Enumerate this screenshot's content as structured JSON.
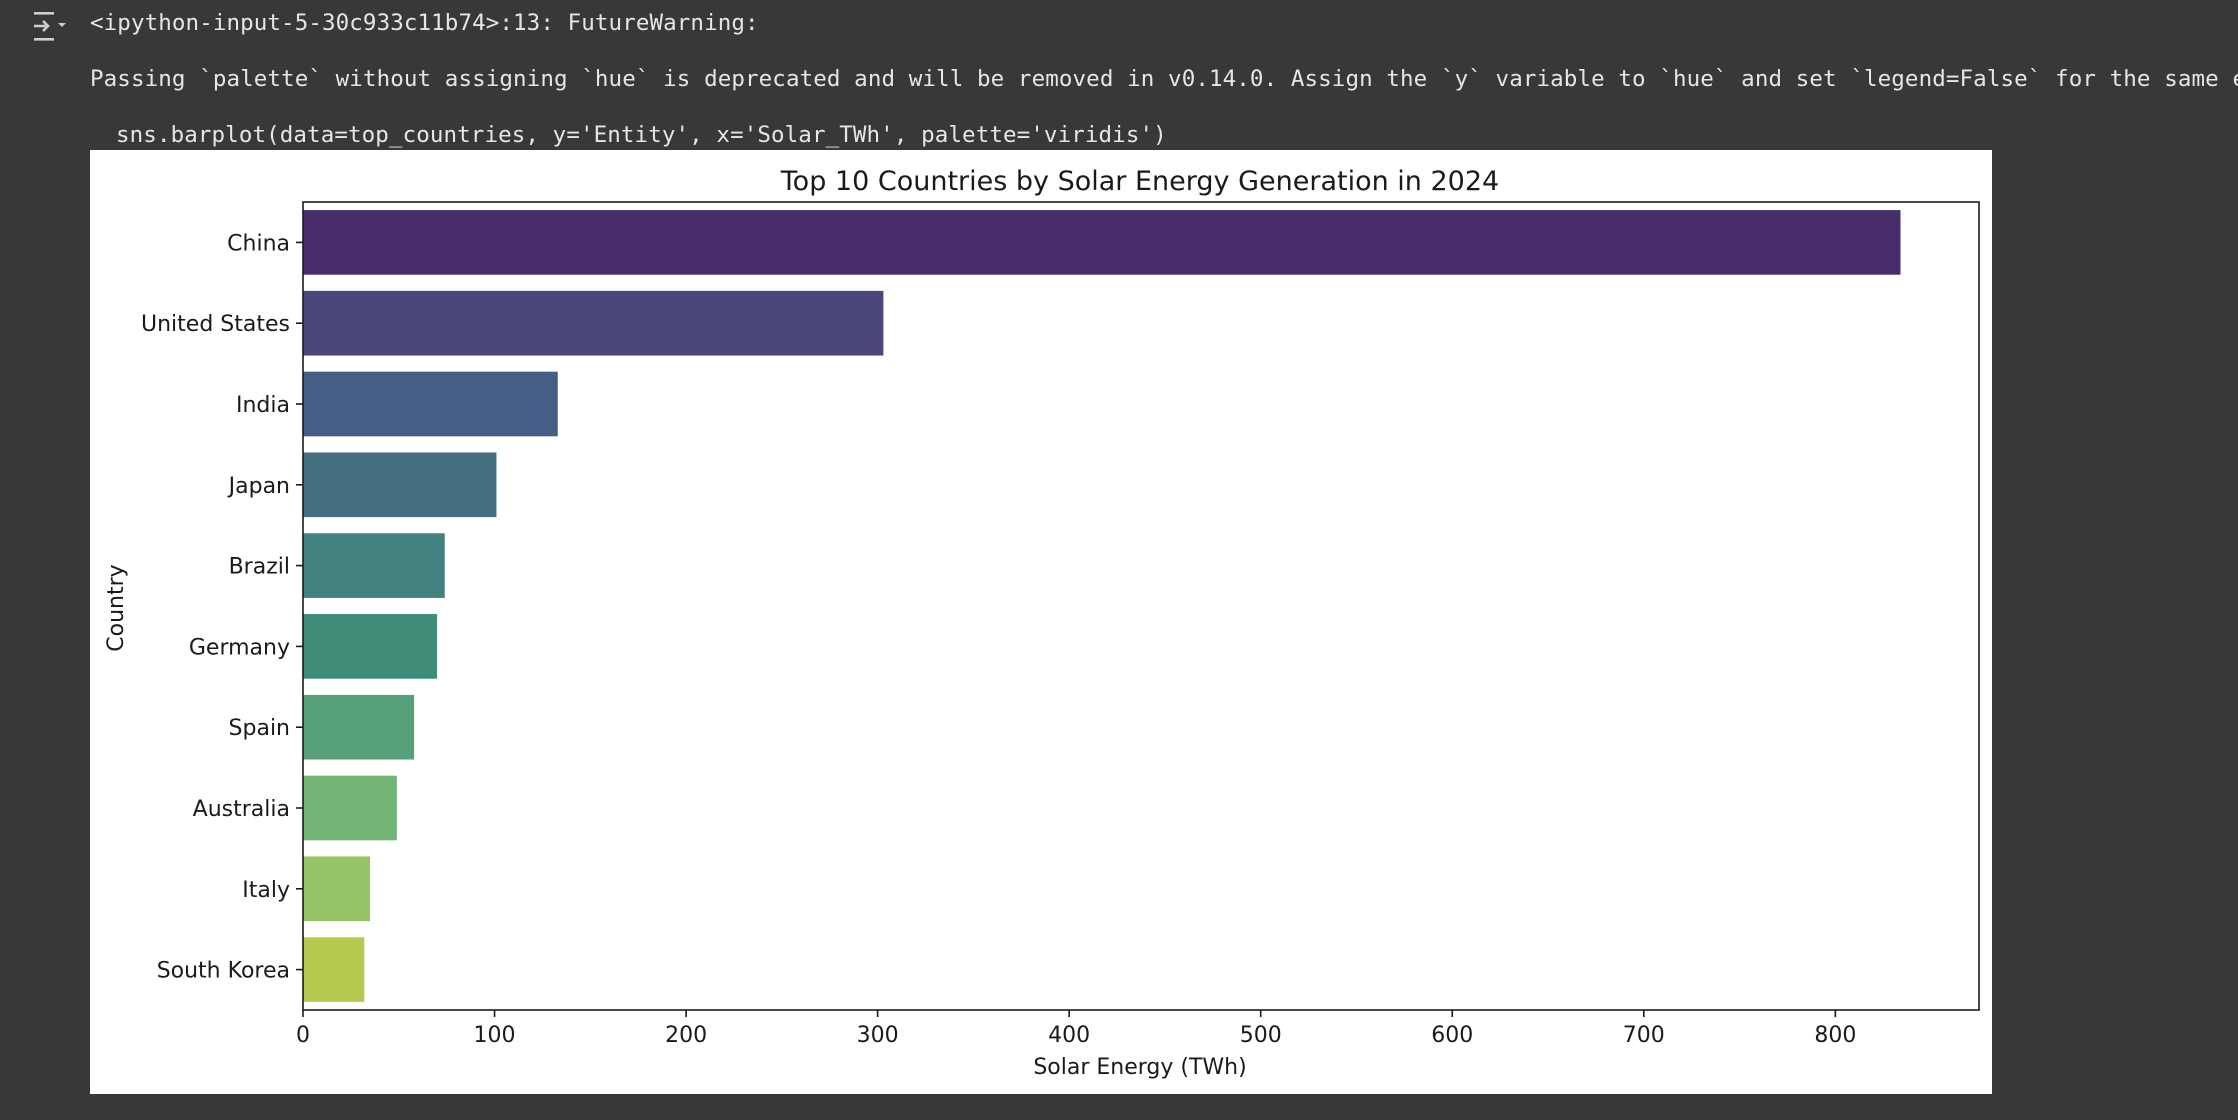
{
  "output": {
    "icon": "output-toggle-icon",
    "warning_line": "<ipython-input-5-30c933c11b74>:13: FutureWarning:",
    "message_line": "Passing `palette` without assigning `hue` is deprecated and will be removed in v0.14.0. Assign the `y` variable to `hue` and set `legend=False` for the same effect.",
    "code_line": "sns.barplot(data=top_countries, y='Entity', x='Solar_TWh', palette='viridis')"
  },
  "chart_data": {
    "type": "bar",
    "orientation": "horizontal",
    "title": "Top 10 Countries by Solar Energy Generation in 2024",
    "xlabel": "Solar Energy (TWh)",
    "ylabel": "Country",
    "categories": [
      "China",
      "United States",
      "India",
      "Japan",
      "Brazil",
      "Germany",
      "Spain",
      "Australia",
      "Italy",
      "South Korea"
    ],
    "values": [
      834,
      303,
      133,
      101,
      74,
      70,
      58,
      49,
      35,
      32
    ],
    "xlim": [
      0,
      875
    ],
    "xticks": [
      0,
      100,
      200,
      300,
      400,
      500,
      600,
      700,
      800
    ],
    "colors": [
      "#472d6b",
      "#4a487b",
      "#455e85",
      "#436f7f",
      "#41817f",
      "#3f8d79",
      "#58a079",
      "#72b474",
      "#95c365",
      "#b8c94f"
    ],
    "grid": false,
    "legend": "none"
  }
}
